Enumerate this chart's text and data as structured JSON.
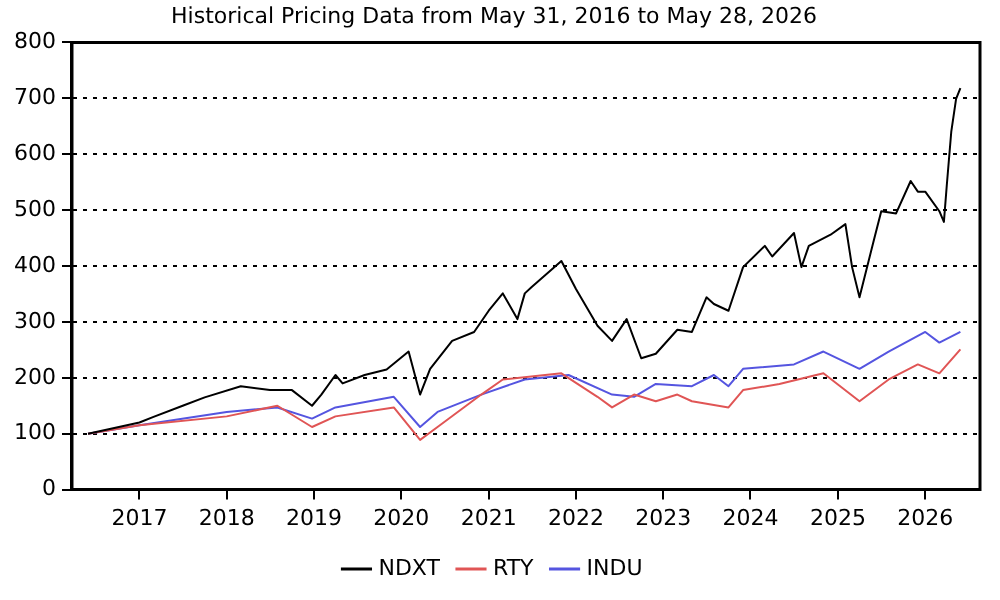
{
  "chart_data": {
    "type": "line",
    "title": "Historical Pricing Data from May 31, 2016 to May 28, 2026",
    "xlim": [
      "2016-03-25",
      "2026-08-18"
    ],
    "xticks": [
      "2017",
      "2018",
      "2019",
      "2020",
      "2021",
      "2022",
      "2023",
      "2024",
      "2025",
      "2026"
    ],
    "ylim": [
      0,
      800
    ],
    "yticks": [
      0,
      100,
      200,
      300,
      400,
      500,
      600,
      700,
      800
    ],
    "grid": "y",
    "legend": "bottom",
    "marker": "none",
    "line_style": "solid",
    "series": [
      {
        "name": "NDXT",
        "color": "#000000",
        "x": [
          "2016-05-31",
          "2017-01",
          "2017-03",
          "2017-07",
          "2017-10",
          "2018-03",
          "2018-07",
          "2018-10",
          "2018-12-24",
          "2019-02",
          "2019-04",
          "2019-05",
          "2019-08",
          "2019-11",
          "2020-02",
          "2020-03-20",
          "2020-05",
          "2020-08",
          "2020-11",
          "2021-01",
          "2021-03",
          "2021-05",
          "2021-06",
          "2021-07",
          "2021-11",
          "2022-01",
          "2022-04",
          "2022-06",
          "2022-08",
          "2022-10",
          "2022-12",
          "2023-03",
          "2023-05",
          "2023-07",
          "2023-08",
          "2023-10",
          "2023-12",
          "2024-03",
          "2024-04",
          "2024-07",
          "2024-08",
          "2024-09",
          "2024-12",
          "2025-02",
          "2025-03",
          "2025-04",
          "2025-06",
          "2025-07",
          "2025-09",
          "2025-11",
          "2025-12",
          "2026-01",
          "2026-03",
          "2026-03-20",
          "2026-04",
          "2026-04-20",
          "2026-05-10",
          "2026-05-28"
        ],
        "values": [
          100,
          120,
          130,
          150,
          165,
          185,
          178,
          178,
          150,
          170,
          205,
          190,
          205,
          215,
          247,
          170,
          216,
          266,
          282,
          320,
          351,
          305,
          351,
          363,
          409,
          359,
          293,
          266,
          305,
          235,
          243,
          286,
          282,
          344,
          332,
          320,
          398,
          436,
          417,
          459,
          398,
          436,
          456,
          475,
          398,
          344,
          448,
          498,
          494,
          552,
          533,
          533,
          498,
          479,
          544,
          641,
          699,
          718
        ]
      },
      {
        "name": "RTY",
        "color": "#e05555",
        "x": [
          "2016-05-31",
          "2017-01",
          "2018-01",
          "2018-08",
          "2018-12-24",
          "2019-04",
          "2019-12",
          "2020-03-20",
          "2020-06",
          "2020-12",
          "2021-03",
          "2021-11",
          "2022-04",
          "2022-06",
          "2022-09",
          "2022-12",
          "2023-03",
          "2023-05",
          "2023-10",
          "2023-12",
          "2024-05",
          "2024-11",
          "2025-04",
          "2025-08",
          "2025-12",
          "2026-03",
          "2026-05-28"
        ],
        "values": [
          100,
          115,
          131,
          150,
          112,
          131,
          147,
          89,
          112,
          170,
          197,
          208,
          166,
          147,
          170,
          158,
          170,
          158,
          147,
          178,
          189,
          208,
          158,
          197,
          224,
          208,
          251
        ]
      },
      {
        "name": "INDU",
        "color": "#5555e0",
        "x": [
          "2016-05-31",
          "2017-01",
          "2018-01",
          "2018-08",
          "2018-12-24",
          "2019-04",
          "2019-12",
          "2020-03-20",
          "2020-06",
          "2020-12",
          "2021-06",
          "2021-12",
          "2022-06",
          "2022-09",
          "2022-12",
          "2023-05",
          "2023-08",
          "2023-10",
          "2023-12",
          "2024-07",
          "2024-11",
          "2025-04",
          "2025-08",
          "2026-01",
          "2026-03",
          "2026-05-28"
        ],
        "values": [
          100,
          115,
          139,
          147,
          127,
          147,
          166,
          112,
          139,
          170,
          197,
          205,
          170,
          166,
          189,
          185,
          205,
          185,
          216,
          224,
          247,
          216,
          247,
          282,
          263,
          282
        ]
      }
    ]
  }
}
